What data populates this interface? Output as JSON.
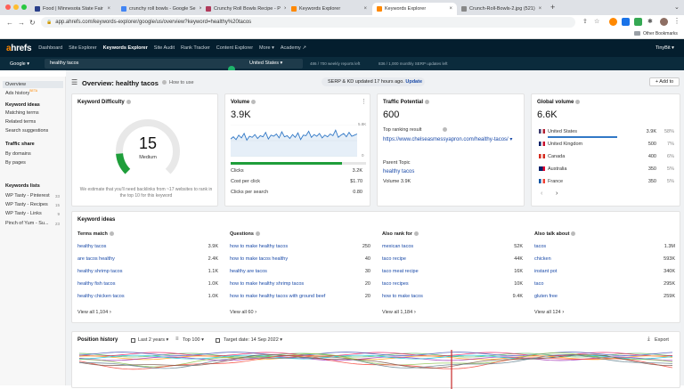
{
  "browser": {
    "tabs": [
      {
        "title": "Food | Minnesota State Fair",
        "color": "#2a3f8a"
      },
      {
        "title": "crunchy roll bowls - Google Se",
        "color": "#4285f4"
      },
      {
        "title": "Crunchy Roll Bowls Recipe - P",
        "color": "#b03a5b"
      },
      {
        "title": "Keywords Explorer",
        "color": "#ff8800"
      },
      {
        "title": "Keywords Explorer",
        "color": "#ff8800"
      },
      {
        "title": "Crunch-Roll-Bowls-2.jpg (521)",
        "color": "#888888"
      }
    ],
    "active_tab_index": 4,
    "url": "app.ahrefs.com/keywords-explorer/google/us/overview?keyword=healthy%20tacos",
    "bookmarks_label": "Other Bookmarks",
    "new_tab_glyph": "+"
  },
  "nav": {
    "logo_a": "a",
    "logo_rest": "hrefs",
    "items": [
      "Dashboard",
      "Site Explorer",
      "Keywords Explorer",
      "Site Audit",
      "Rank Tracker",
      "Content Explorer",
      "More ▾",
      "Academy ↗"
    ],
    "active_item": "Keywords Explorer",
    "account": "TinyBit ▾"
  },
  "search": {
    "engine": "Google ▾",
    "query": "healthy tacos",
    "country": "United States ▾",
    "weekly_reports": "486 / 700 weekly reports left",
    "serp_pages": "836 / 1,000 monthly SERP updates left"
  },
  "sidebar": {
    "items": [
      {
        "label": "Overview",
        "type": "item",
        "selected": true
      },
      {
        "label": "Ads history",
        "badge": "BETA",
        "type": "item"
      },
      {
        "label": "Keyword ideas",
        "type": "header"
      },
      {
        "label": "Matching terms",
        "type": "item"
      },
      {
        "label": "Related terms",
        "type": "item"
      },
      {
        "label": "Search suggestions",
        "type": "item"
      },
      {
        "label": "Traffic share",
        "type": "header"
      },
      {
        "label": "By domains",
        "type": "item"
      },
      {
        "label": "By pages",
        "type": "item"
      },
      {
        "label": "Keywords lists",
        "type": "header"
      },
      {
        "label": "WP Tasty - Pinterest",
        "count": "33",
        "type": "item"
      },
      {
        "label": "WP Tasty - Recipes",
        "count": "15",
        "type": "item"
      },
      {
        "label": "WP Tasty - Links",
        "count": "9",
        "type": "item"
      },
      {
        "label": "Pinch of Yum - Su...",
        "count": "23",
        "type": "item"
      }
    ]
  },
  "overview": {
    "title": "Overview: healthy tacos",
    "how_to_use": "How to use",
    "serp_notice": "SERP & KD updated 17 hours ago.",
    "update_label": "Update",
    "add_to": "+ Add to"
  },
  "kd": {
    "title": "Keyword Difficulty",
    "score": "15",
    "level": "Medium",
    "score_fraction": 0.15,
    "note": "We estimate that you'll need backlinks from ~17 websites to rank in the top 10 for this keyword"
  },
  "volume": {
    "title": "Volume",
    "value": "3.9K",
    "axis_top": "5.8K",
    "axis_bottom": "0",
    "clicks_fraction": 0.82,
    "rows": [
      {
        "label": "Clicks",
        "value": "3.2K"
      },
      {
        "label": "Cost per click",
        "value": "$1.70"
      },
      {
        "label": "Clicks per search",
        "value": "0.80"
      }
    ],
    "trend": [
      3.2,
      3.6,
      3.1,
      3.9,
      3.4,
      4.2,
      3.0,
      3.7,
      3.5,
      4.0,
      3.3,
      3.8,
      3.6,
      4.4,
      3.2,
      3.9,
      3.7,
      4.1,
      3.4,
      4.5,
      3.6,
      3.8,
      3.3,
      4.0,
      3.5,
      4.3,
      3.1,
      3.9,
      3.8,
      4.6,
      3.5,
      4.0,
      3.7,
      4.2,
      3.4,
      3.9,
      3.6,
      4.1,
      3.8,
      4.8,
      3.5,
      3.9,
      4.2,
      3.6,
      4.4,
      3.7,
      3.9,
      4.1
    ]
  },
  "traffic": {
    "title": "Traffic Potential",
    "value": "600",
    "top_result_label": "Top ranking result",
    "top_result_url": "https://www.chelseasmessyapron.com/healthy-tacos/ ▾",
    "parent_label": "Parent Topic",
    "parent_topic": "healthy tacos",
    "parent_volume": "Volume 3.9K"
  },
  "global": {
    "title": "Global volume",
    "value": "6.6K",
    "countries": [
      {
        "name": "United States",
        "value": "3.9K",
        "pct": "58%",
        "colors": [
          "#3c3b6e",
          "#fff",
          "#b22234"
        ]
      },
      {
        "name": "United Kingdom",
        "value": "500",
        "pct": "7%",
        "colors": [
          "#012169",
          "#fff",
          "#c8102e"
        ]
      },
      {
        "name": "Canada",
        "value": "400",
        "pct": "6%",
        "colors": [
          "#d52b1e",
          "#fff",
          "#d52b1e"
        ]
      },
      {
        "name": "Australia",
        "value": "350",
        "pct": "5%",
        "colors": [
          "#012169",
          "#012169",
          "#e4002b"
        ]
      },
      {
        "name": "France",
        "value": "350",
        "pct": "5%",
        "colors": [
          "#0055a4",
          "#fff",
          "#ef4135"
        ]
      }
    ]
  },
  "ideas": {
    "title": "Keyword ideas",
    "columns": [
      {
        "header": "Terms match",
        "view_all": "View all 1,104",
        "rows": [
          [
            "healthy tacos",
            "3.9K"
          ],
          [
            "are tacos healthy",
            "2.4K"
          ],
          [
            "healthy shrimp tacos",
            "1.1K"
          ],
          [
            "healthy fish tacos",
            "1.0K"
          ],
          [
            "healthy chicken tacos",
            "1.0K"
          ]
        ]
      },
      {
        "header": "Questions",
        "view_all": "View all 60",
        "rows": [
          [
            "how to make healthy tacos",
            "250"
          ],
          [
            "how to make tacos healthy",
            "40"
          ],
          [
            "healthy are tacos",
            "30"
          ],
          [
            "how to make healthy shrimp tacos",
            "20"
          ],
          [
            "how to make healthy tacos with ground beef",
            "20"
          ]
        ]
      },
      {
        "header": "Also rank for",
        "view_all": "View all 1,184",
        "rows": [
          [
            "mexican tacos",
            "52K"
          ],
          [
            "taco recipe",
            "44K"
          ],
          [
            "taco meat recipe",
            "16K"
          ],
          [
            "taco recipes",
            "10K"
          ],
          [
            "how to make tacos",
            "9.4K"
          ]
        ]
      },
      {
        "header": "Also talk about",
        "view_all": "View all 124",
        "rows": [
          [
            "tacos",
            "1.3M"
          ],
          [
            "chicken",
            "593K"
          ],
          [
            "instant pot",
            "340K"
          ],
          [
            "taco",
            "295K"
          ],
          [
            "gluten free",
            "259K"
          ]
        ]
      }
    ]
  },
  "position": {
    "title": "Position history",
    "range": "Last 2 years ▾",
    "top": "Top 100 ▾",
    "target": "Target date: 14 Sep 2022 ▾",
    "export": "Export"
  },
  "colors": {
    "accent": "#ff8800",
    "nav_bg": "#041e2e",
    "link": "#1a4aa8",
    "kd_green": "#1e9e3a",
    "chart_blue": "#3178c6"
  }
}
